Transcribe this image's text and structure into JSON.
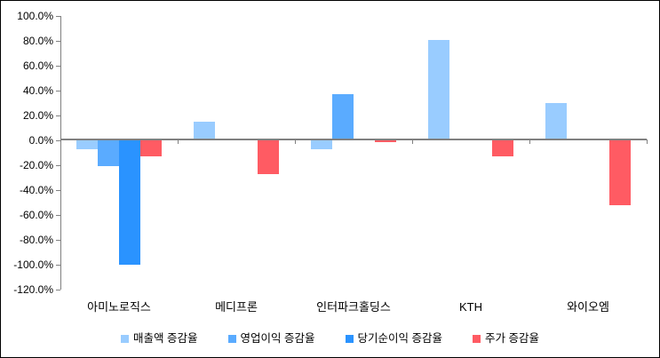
{
  "colors": {
    "background": "#FFFFFF",
    "frame_border": "#000000",
    "axis": "#808080",
    "text": "#000000",
    "series_light_blue": "#99CCFF",
    "series_medium_blue": "#5AABFF",
    "series_dark_blue": "#2A93FF",
    "series_red": "#FF5B63"
  },
  "chart_data": {
    "type": "bar",
    "title": "",
    "xlabel": "",
    "ylabel": "",
    "grid": false,
    "legend_position": "bottom",
    "categories": [
      "아미노로직스",
      "메디프론",
      "인터파크홀딩스",
      "KTH",
      "와이오엠"
    ],
    "series": [
      {
        "name": "매출액 증감율",
        "color": "#99CCFF",
        "values": [
          -7,
          15,
          -7,
          81,
          30
        ]
      },
      {
        "name": "영업이익 증감율",
        "color": "#5AABFF",
        "values": [
          -21,
          0,
          37,
          0,
          0
        ]
      },
      {
        "name": "당기순이익 증감율",
        "color": "#2A93FF",
        "values": [
          -100,
          0,
          0,
          0,
          0
        ]
      },
      {
        "name": "주가 증감율",
        "color": "#FF5B63",
        "values": [
          -13,
          -27,
          -1.5,
          -13,
          -52
        ]
      }
    ],
    "y_axis": {
      "unit": "%",
      "min": -120,
      "max": 100,
      "step": 20,
      "tick_labels": [
        "100.0%",
        "80.0%",
        "60.0%",
        "40.0%",
        "20.0%",
        "0.0%",
        "-20.0%",
        "-40.0%",
        "-60.0%",
        "-80.0%",
        "-100.0%",
        "-120.0%"
      ]
    }
  }
}
